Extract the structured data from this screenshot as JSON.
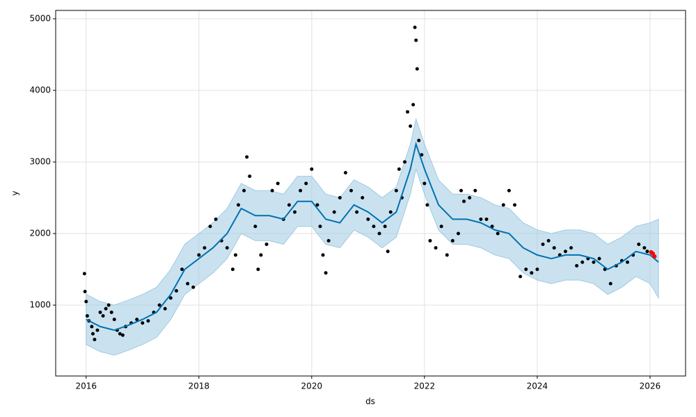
{
  "chart_data": {
    "type": "forecast",
    "xlabel": "ds",
    "ylabel": "y",
    "xlim": [
      2015.46,
      2026.63
    ],
    "ylim": [
      10,
      5117
    ],
    "xticks": [
      2016,
      2018,
      2020,
      2022,
      2024,
      2026
    ],
    "yticks": [
      1000,
      2000,
      3000,
      4000,
      5000
    ],
    "grid": true,
    "forecast": {
      "color": "#0072b2",
      "band_color": "#9ecae1",
      "x": [
        2016.0,
        2016.25,
        2016.5,
        2016.75,
        2017.0,
        2017.25,
        2017.5,
        2017.75,
        2018.0,
        2018.25,
        2018.5,
        2018.75,
        2019.0,
        2019.25,
        2019.5,
        2019.75,
        2020.0,
        2020.25,
        2020.5,
        2020.75,
        2021.0,
        2021.25,
        2021.5,
        2021.75,
        2021.85,
        2022.0,
        2022.25,
        2022.5,
        2022.75,
        2023.0,
        2023.25,
        2023.5,
        2023.75,
        2024.0,
        2024.25,
        2024.5,
        2024.75,
        2025.0,
        2025.25,
        2025.5,
        2025.75,
        2026.0,
        2026.15
      ],
      "yhat": [
        800,
        700,
        650,
        720,
        800,
        900,
        1150,
        1500,
        1650,
        1800,
        2000,
        2350,
        2250,
        2250,
        2200,
        2450,
        2450,
        2200,
        2150,
        2400,
        2300,
        2150,
        2300,
        2900,
        3250,
        2900,
        2400,
        2200,
        2200,
        2150,
        2050,
        2000,
        1800,
        1700,
        1650,
        1700,
        1700,
        1650,
        1500,
        1600,
        1750,
        1700,
        1600
      ],
      "yhat_lower": [
        450,
        350,
        300,
        370,
        450,
        550,
        800,
        1150,
        1300,
        1450,
        1650,
        2000,
        1900,
        1900,
        1850,
        2100,
        2100,
        1850,
        1800,
        2050,
        1950,
        1800,
        1950,
        2550,
        2900,
        2550,
        2050,
        1850,
        1850,
        1800,
        1700,
        1650,
        1450,
        1350,
        1300,
        1350,
        1350,
        1300,
        1150,
        1250,
        1400,
        1300,
        1100
      ],
      "yhat_upper": [
        1150,
        1050,
        1000,
        1070,
        1150,
        1250,
        1500,
        1850,
        2000,
        2150,
        2350,
        2700,
        2600,
        2600,
        2550,
        2800,
        2800,
        2550,
        2500,
        2750,
        2650,
        2500,
        2650,
        3250,
        3600,
        3250,
        2750,
        2550,
        2550,
        2500,
        2400,
        2350,
        2150,
        2050,
        2000,
        2050,
        2050,
        2000,
        1850,
        1950,
        2100,
        2150,
        2200
      ]
    },
    "observed": {
      "color": "#000000",
      "x": [
        2015.97,
        2015.98,
        2016.0,
        2016.02,
        2016.05,
        2016.1,
        2016.12,
        2016.15,
        2016.2,
        2016.25,
        2016.3,
        2016.35,
        2016.4,
        2016.45,
        2016.5,
        2016.55,
        2016.6,
        2016.65,
        2016.7,
        2016.8,
        2016.9,
        2017.0,
        2017.1,
        2017.2,
        2017.3,
        2017.4,
        2017.5,
        2017.6,
        2017.7,
        2017.8,
        2017.9,
        2018.0,
        2018.1,
        2018.2,
        2018.3,
        2018.4,
        2018.5,
        2018.6,
        2018.65,
        2018.7,
        2018.8,
        2018.85,
        2018.9,
        2019.0,
        2019.05,
        2019.1,
        2019.2,
        2019.3,
        2019.4,
        2019.5,
        2019.6,
        2019.7,
        2019.8,
        2019.9,
        2020.0,
        2020.1,
        2020.15,
        2020.2,
        2020.25,
        2020.3,
        2020.4,
        2020.5,
        2020.6,
        2020.7,
        2020.8,
        2020.9,
        2021.0,
        2021.1,
        2021.2,
        2021.3,
        2021.35,
        2021.4,
        2021.5,
        2021.55,
        2021.6,
        2021.65,
        2021.7,
        2021.75,
        2021.8,
        2021.83,
        2021.85,
        2021.87,
        2021.9,
        2021.95,
        2022.0,
        2022.05,
        2022.1,
        2022.2,
        2022.3,
        2022.4,
        2022.5,
        2022.6,
        2022.65,
        2022.7,
        2022.8,
        2022.9,
        2023.0,
        2023.1,
        2023.2,
        2023.3,
        2023.4,
        2023.5,
        2023.6,
        2023.7,
        2023.8,
        2023.9,
        2024.0,
        2024.1,
        2024.2,
        2024.3,
        2024.4,
        2024.5,
        2024.6,
        2024.7,
        2024.8,
        2024.9,
        2025.0,
        2025.1,
        2025.2,
        2025.3,
        2025.4,
        2025.5,
        2025.6,
        2025.7,
        2025.8,
        2025.9,
        2025.95
      ],
      "y": [
        1440,
        1190,
        1050,
        850,
        780,
        700,
        600,
        520,
        650,
        900,
        850,
        950,
        1000,
        900,
        800,
        650,
        600,
        580,
        700,
        750,
        800,
        750,
        780,
        900,
        1000,
        950,
        1100,
        1200,
        1500,
        1300,
        1250,
        1700,
        1800,
        2100,
        2200,
        1900,
        1800,
        1500,
        1700,
        2400,
        2600,
        3070,
        2800,
        2100,
        1500,
        1700,
        1850,
        2600,
        2700,
        2200,
        2400,
        2300,
        2600,
        2700,
        2900,
        2400,
        2100,
        1700,
        1450,
        1900,
        2300,
        2500,
        2850,
        2600,
        2300,
        2500,
        2200,
        2100,
        2000,
        2100,
        1750,
        2300,
        2600,
        2900,
        2500,
        3000,
        3700,
        3500,
        3800,
        4880,
        4700,
        4300,
        3300,
        3100,
        2700,
        2400,
        1900,
        1800,
        2100,
        1700,
        1900,
        2000,
        2600,
        2450,
        2500,
        2600,
        2200,
        2200,
        2100,
        2000,
        2400,
        2600,
        2400,
        1400,
        1500,
        1450,
        1500,
        1850,
        1900,
        1800,
        1700,
        1750,
        1800,
        1550,
        1600,
        1650,
        1600,
        1650,
        1500,
        1300,
        1550,
        1620,
        1600,
        1700,
        1850,
        1800,
        1750
      ]
    },
    "recent": {
      "color": "#ff0000",
      "x": [
        2026.02,
        2026.05,
        2026.08
      ],
      "y": [
        1740,
        1720,
        1680
      ]
    }
  }
}
